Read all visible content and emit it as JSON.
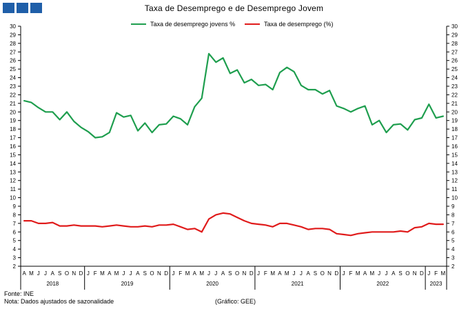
{
  "header": {
    "title": "Taxa de Desemprego e de Desemprego Jovem"
  },
  "colors": {
    "youth": "#1e9e4e",
    "total": "#e01b1b",
    "logo": "#1f5fa9",
    "axis": "#000000"
  },
  "footer": {
    "source": "Fonte: INE",
    "note": "Nota: Dados ajustados de sazonalidade",
    "credit": "(Gráfico: GEE)"
  },
  "chart_data": {
    "type": "line",
    "title": "Taxa de Desemprego e de Desemprego Jovem",
    "ylim": [
      2,
      30
    ],
    "yticks": [
      2,
      3,
      4,
      5,
      6,
      7,
      8,
      9,
      10,
      11,
      12,
      13,
      14,
      15,
      16,
      17,
      18,
      19,
      20,
      21,
      22,
      23,
      24,
      25,
      26,
      27,
      28,
      29,
      30
    ],
    "y_axes": "left-and-right",
    "grid": false,
    "legend_position": "top-center",
    "categories": [
      "A",
      "M",
      "J",
      "J",
      "A",
      "S",
      "O",
      "N",
      "D",
      "J",
      "F",
      "M",
      "A",
      "M",
      "J",
      "J",
      "A",
      "S",
      "O",
      "N",
      "D",
      "J",
      "F",
      "M",
      "A",
      "M",
      "J",
      "J",
      "A",
      "S",
      "O",
      "N",
      "D",
      "J",
      "F",
      "M",
      "A",
      "M",
      "J",
      "J",
      "A",
      "S",
      "O",
      "N",
      "D",
      "J",
      "F",
      "M",
      "A",
      "M",
      "J",
      "J",
      "A",
      "S",
      "O",
      "N",
      "D",
      "J",
      "F",
      "M"
    ],
    "year_groups": [
      {
        "label": "2018",
        "count": 9
      },
      {
        "label": "2019",
        "count": 12
      },
      {
        "label": "2020",
        "count": 12
      },
      {
        "label": "2021",
        "count": 12
      },
      {
        "label": "2022",
        "count": 12
      },
      {
        "label": "2023",
        "count": 3
      }
    ],
    "series": [
      {
        "name": "Taxa de desemprego jovens %",
        "values": [
          21.3,
          21.1,
          20.5,
          20.0,
          20.0,
          19.1,
          20.0,
          18.9,
          18.2,
          17.7,
          17.0,
          17.1,
          17.6,
          19.9,
          19.4,
          19.6,
          17.8,
          18.7,
          17.6,
          18.5,
          18.6,
          19.5,
          19.2,
          18.5,
          20.6,
          21.6,
          26.8,
          25.8,
          26.3,
          24.5,
          24.9,
          23.4,
          23.8,
          23.1,
          23.2,
          22.6,
          24.6,
          25.2,
          24.7,
          23.1,
          22.6,
          22.6,
          22.1,
          22.5,
          20.7,
          20.4,
          20.0,
          20.4,
          20.7,
          18.5,
          19.0,
          17.6,
          18.5,
          18.6,
          17.9,
          19.1,
          19.3,
          20.9,
          19.3,
          19.5
        ]
      },
      {
        "name": "Taxa de desemprego (%)",
        "values": [
          7.3,
          7.3,
          7.0,
          7.0,
          7.1,
          6.7,
          6.7,
          6.8,
          6.7,
          6.7,
          6.7,
          6.6,
          6.7,
          6.8,
          6.7,
          6.6,
          6.6,
          6.7,
          6.6,
          6.8,
          6.8,
          6.9,
          6.6,
          6.3,
          6.4,
          6.0,
          7.5,
          8.0,
          8.2,
          8.1,
          7.7,
          7.3,
          7.0,
          6.9,
          6.8,
          6.6,
          7.0,
          7.0,
          6.8,
          6.6,
          6.3,
          6.4,
          6.4,
          6.3,
          5.8,
          5.7,
          5.6,
          5.8,
          5.9,
          6.0,
          6.0,
          6.0,
          6.0,
          6.1,
          6.0,
          6.5,
          6.6,
          7.0,
          6.9,
          6.9
        ]
      }
    ]
  }
}
